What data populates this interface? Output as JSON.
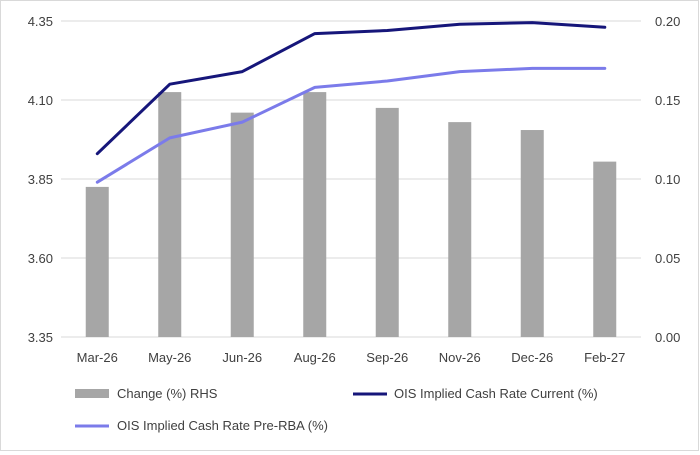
{
  "chart_data": {
    "type": "bar+line",
    "categories": [
      "Mar-26",
      "May-26",
      "Jun-26",
      "Aug-26",
      "Sep-26",
      "Nov-26",
      "Dec-26",
      "Feb-27"
    ],
    "left_axis": {
      "min": 3.35,
      "max": 4.35,
      "ticks": [
        3.35,
        3.6,
        3.85,
        4.1,
        4.35
      ],
      "tick_labels": [
        "3.35",
        "3.60",
        "3.85",
        "4.10",
        "4.35"
      ]
    },
    "right_axis": {
      "min": 0.0,
      "max": 0.2,
      "ticks": [
        0.0,
        0.05,
        0.1,
        0.15,
        0.2
      ],
      "tick_labels": [
        "0.00",
        "0.05",
        "0.10",
        "0.15",
        "0.20"
      ]
    },
    "series": [
      {
        "name": "Change (%) RHS",
        "kind": "bar",
        "axis": "right",
        "color": "#a6a6a6",
        "values": [
          0.095,
          0.155,
          0.142,
          0.155,
          0.145,
          0.136,
          0.131,
          0.111
        ]
      },
      {
        "name": "OIS Implied Cash Rate Current (%)",
        "kind": "line",
        "axis": "left",
        "color": "#16167a",
        "values": [
          3.93,
          4.15,
          4.19,
          4.31,
          4.32,
          4.34,
          4.345,
          4.33
        ]
      },
      {
        "name": "OIS Implied Cash Rate Pre-RBA (%)",
        "kind": "line",
        "axis": "left",
        "color": "#7b7bea",
        "values": [
          3.84,
          3.98,
          4.03,
          4.14,
          4.16,
          4.19,
          4.2,
          4.2
        ]
      }
    ],
    "legend": [
      "Change (%) RHS",
      "OIS Implied Cash Rate Current (%)",
      "OIS Implied Cash Rate Pre-RBA (%)"
    ],
    "grid": true,
    "legend_position": "bottom"
  }
}
